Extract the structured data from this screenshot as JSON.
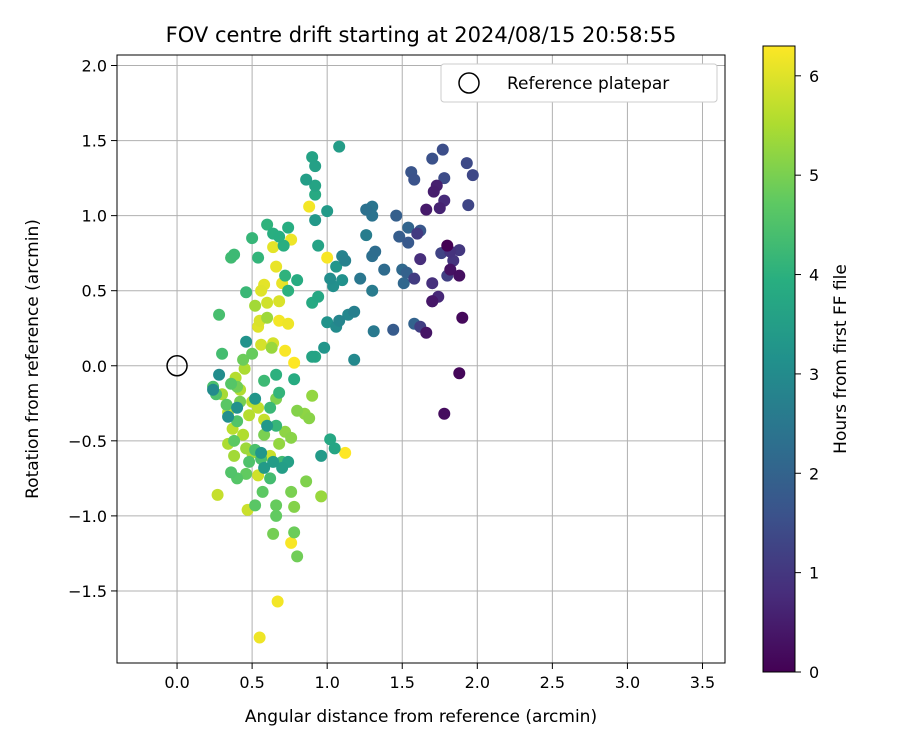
{
  "chart_data": {
    "type": "scatter",
    "title": "FOV centre drift starting at 2024/08/15 20:58:55",
    "xlabel": "Angular distance from reference (arcmin)",
    "ylabel": "Rotation from reference (arcmin)",
    "xlim": [
      -0.4,
      3.65
    ],
    "ylim": [
      -1.98,
      2.07
    ],
    "xticks": [
      "0.0",
      "0.5",
      "1.0",
      "1.5",
      "2.0",
      "2.5",
      "3.0",
      "3.5"
    ],
    "yticks": [
      "−1.5",
      "−1.0",
      "−0.5",
      "0.0",
      "0.5",
      "1.0",
      "1.5",
      "2.0"
    ],
    "grid": true,
    "legend": {
      "placement": "top-right",
      "entries": [
        "Reference platepar"
      ]
    },
    "reference_point": {
      "x": 0.0,
      "y": 0.0
    },
    "colorbar": {
      "label": "Hours from first FF file",
      "range": [
        0,
        6.3
      ],
      "ticks": [
        "0",
        "1",
        "2",
        "3",
        "4",
        "5",
        "6"
      ],
      "colormap": "viridis"
    },
    "series": [
      {
        "points": [
          [
            1.8,
            0.8,
            0.0
          ],
          [
            1.88,
            -0.05,
            0.1
          ],
          [
            1.9,
            0.32,
            0.15
          ],
          [
            1.78,
            -0.32,
            0.2
          ],
          [
            1.88,
            0.6,
            0.25
          ],
          [
            1.82,
            0.64,
            0.3
          ],
          [
            1.66,
            0.22,
            0.35
          ],
          [
            1.7,
            0.43,
            0.4
          ],
          [
            1.66,
            1.04,
            0.45
          ],
          [
            1.71,
            1.16,
            0.5
          ],
          [
            1.73,
            1.2,
            0.55
          ],
          [
            1.75,
            1.05,
            0.6
          ],
          [
            1.7,
            0.43,
            0.65
          ],
          [
            1.74,
            0.46,
            0.7
          ],
          [
            1.78,
            1.1,
            0.75
          ],
          [
            1.62,
            0.71,
            0.8
          ],
          [
            1.7,
            0.55,
            0.85
          ],
          [
            1.82,
            0.76,
            0.9
          ],
          [
            1.84,
            0.7,
            0.95
          ],
          [
            1.88,
            0.77,
            1.0
          ],
          [
            1.6,
            0.88,
            1.05
          ],
          [
            1.58,
            0.58,
            1.1
          ],
          [
            1.62,
            0.26,
            1.15
          ],
          [
            1.8,
            0.6,
            1.2
          ],
          [
            1.76,
            0.75,
            1.25
          ],
          [
            1.94,
            1.07,
            1.3
          ],
          [
            1.97,
            1.27,
            1.35
          ],
          [
            1.93,
            1.35,
            1.4
          ],
          [
            1.78,
            1.25,
            1.45
          ],
          [
            1.77,
            1.44,
            1.5
          ],
          [
            1.7,
            1.38,
            1.55
          ],
          [
            1.58,
            1.24,
            1.6
          ],
          [
            1.56,
            1.29,
            1.65
          ],
          [
            1.62,
            0.9,
            1.7
          ],
          [
            1.54,
            0.82,
            1.75
          ],
          [
            1.44,
            0.24,
            1.8
          ],
          [
            1.48,
            0.86,
            1.85
          ],
          [
            1.46,
            1.0,
            1.9
          ],
          [
            1.53,
            0.62,
            1.95
          ],
          [
            1.58,
            0.28,
            2.0
          ],
          [
            1.54,
            0.92,
            2.05
          ],
          [
            1.51,
            0.55,
            2.1
          ],
          [
            1.5,
            0.64,
            2.15
          ],
          [
            1.38,
            0.64,
            2.2
          ],
          [
            1.32,
            0.76,
            2.25
          ],
          [
            1.3,
            0.73,
            2.3
          ],
          [
            1.26,
            1.04,
            2.35
          ],
          [
            1.3,
            1.0,
            2.4
          ],
          [
            1.3,
            1.06,
            2.45
          ],
          [
            1.22,
            0.58,
            2.5
          ],
          [
            1.31,
            0.23,
            2.55
          ],
          [
            1.3,
            0.5,
            2.6
          ],
          [
            1.26,
            0.87,
            2.65
          ],
          [
            1.18,
            0.36,
            2.7
          ],
          [
            1.12,
            0.7,
            2.75
          ],
          [
            1.1,
            0.73,
            2.8
          ],
          [
            1.08,
            0.3,
            2.85
          ],
          [
            1.14,
            0.34,
            2.9
          ],
          [
            1.18,
            0.04,
            2.95
          ],
          [
            1.06,
            0.26,
            3.0
          ],
          [
            1.02,
            0.58,
            3.05
          ],
          [
            1.04,
            0.53,
            3.1
          ],
          [
            1.1,
            0.57,
            3.15
          ],
          [
            1.0,
            0.29,
            3.2
          ],
          [
            0.98,
            0.12,
            3.25
          ],
          [
            1.06,
            0.66,
            3.3
          ],
          [
            0.92,
            0.97,
            3.35
          ],
          [
            1.0,
            1.03,
            3.4
          ],
          [
            1.08,
            1.46,
            3.45
          ],
          [
            0.86,
            1.24,
            3.5
          ],
          [
            0.92,
            1.33,
            3.55
          ],
          [
            0.9,
            1.39,
            3.6
          ],
          [
            0.92,
            1.2,
            3.65
          ],
          [
            1.05,
            -0.55,
            3.7
          ],
          [
            1.02,
            -0.49,
            3.75
          ],
          [
            0.92,
            1.14,
            3.8
          ],
          [
            0.78,
            -0.09,
            3.85
          ],
          [
            0.74,
            0.92,
            3.9
          ],
          [
            0.71,
            0.8,
            3.95
          ],
          [
            0.66,
            -0.06,
            4.0
          ],
          [
            0.6,
            0.94,
            4.05
          ],
          [
            0.54,
            0.72,
            4.1
          ],
          [
            0.5,
            0.85,
            4.15
          ],
          [
            0.46,
            0.49,
            4.2
          ],
          [
            0.38,
            0.74,
            4.25
          ],
          [
            0.36,
            0.72,
            4.3
          ],
          [
            0.3,
            0.08,
            4.35
          ],
          [
            0.28,
            0.34,
            4.4
          ],
          [
            0.24,
            -0.14,
            4.45
          ],
          [
            0.26,
            -0.19,
            4.5
          ],
          [
            0.36,
            -0.71,
            4.55
          ],
          [
            0.4,
            -0.75,
            4.6
          ],
          [
            0.52,
            -0.93,
            4.65
          ],
          [
            0.57,
            -0.84,
            4.7
          ],
          [
            0.66,
            -1.0,
            4.75
          ],
          [
            0.66,
            -0.93,
            4.8
          ],
          [
            0.78,
            -1.11,
            4.85
          ],
          [
            0.8,
            -1.27,
            4.9
          ],
          [
            0.64,
            -1.12,
            4.95
          ],
          [
            0.76,
            -0.84,
            5.0
          ],
          [
            0.86,
            -0.77,
            5.05
          ],
          [
            0.78,
            -0.94,
            5.1
          ],
          [
            0.88,
            -0.35,
            5.15
          ],
          [
            0.85,
            -0.32,
            5.2
          ],
          [
            0.9,
            -0.2,
            5.25
          ],
          [
            0.96,
            -0.87,
            5.3
          ],
          [
            0.46,
            -0.55,
            5.35
          ],
          [
            0.38,
            -0.6,
            5.4
          ],
          [
            0.3,
            -0.19,
            5.45
          ],
          [
            0.34,
            -0.52,
            5.5
          ],
          [
            0.44,
            -0.46,
            5.55
          ],
          [
            0.48,
            -0.33,
            5.6
          ],
          [
            0.5,
            -0.24,
            5.65
          ],
          [
            0.54,
            -0.28,
            5.7
          ],
          [
            0.58,
            -0.36,
            5.75
          ],
          [
            0.62,
            -0.6,
            5.8
          ],
          [
            0.6,
            0.42,
            5.85
          ],
          [
            0.64,
            0.15,
            5.9
          ],
          [
            0.68,
            0.43,
            5.95
          ],
          [
            0.56,
            0.5,
            6.0
          ],
          [
            0.58,
            0.54,
            6.05
          ],
          [
            0.7,
            0.55,
            6.1
          ],
          [
            0.76,
            0.84,
            6.15
          ],
          [
            0.88,
            1.06,
            6.2
          ],
          [
            1.0,
            0.72,
            6.25
          ],
          [
            1.12,
            -0.58,
            6.3
          ],
          [
            0.78,
            0.02,
            6.3
          ],
          [
            0.72,
            0.1,
            6.25
          ],
          [
            0.68,
            0.3,
            6.2
          ],
          [
            0.74,
            0.28,
            6.15
          ],
          [
            0.66,
            0.66,
            6.1
          ],
          [
            0.64,
            0.79,
            6.05
          ],
          [
            0.54,
            0.26,
            6.0
          ],
          [
            0.55,
            0.3,
            5.95
          ],
          [
            0.56,
            0.14,
            5.9
          ],
          [
            0.54,
            -0.73,
            5.85
          ],
          [
            0.47,
            -0.96,
            5.8
          ],
          [
            0.27,
            -0.86,
            5.75
          ],
          [
            0.76,
            -1.18,
            6.25
          ],
          [
            0.67,
            -1.57,
            6.2
          ],
          [
            0.55,
            -1.81,
            6.15
          ],
          [
            0.34,
            -0.31,
            5.7
          ],
          [
            0.37,
            -0.42,
            5.65
          ],
          [
            0.39,
            -0.08,
            5.6
          ],
          [
            0.42,
            -0.16,
            5.55
          ],
          [
            0.45,
            -0.02,
            5.5
          ],
          [
            0.5,
            -0.58,
            5.45
          ],
          [
            0.52,
            0.4,
            5.4
          ],
          [
            0.6,
            0.32,
            5.35
          ],
          [
            0.63,
            0.12,
            5.3
          ],
          [
            0.68,
            -0.52,
            5.25
          ],
          [
            0.72,
            -0.44,
            5.2
          ],
          [
            0.76,
            -0.48,
            5.15
          ],
          [
            0.8,
            -0.3,
            5.1
          ],
          [
            0.66,
            -0.22,
            5.05
          ],
          [
            0.58,
            -0.46,
            5.0
          ],
          [
            0.42,
            -0.24,
            4.95
          ],
          [
            0.4,
            -0.14,
            4.9
          ],
          [
            0.44,
            0.04,
            4.85
          ],
          [
            0.5,
            0.08,
            4.8
          ],
          [
            0.46,
            -0.72,
            4.75
          ],
          [
            0.38,
            -0.5,
            4.7
          ],
          [
            0.33,
            -0.26,
            4.65
          ],
          [
            0.36,
            -0.12,
            4.6
          ],
          [
            0.4,
            -0.37,
            4.55
          ],
          [
            0.48,
            -0.64,
            4.5
          ],
          [
            0.52,
            -0.56,
            4.45
          ],
          [
            0.56,
            -0.62,
            4.4
          ],
          [
            0.62,
            -0.75,
            4.35
          ],
          [
            0.7,
            -0.64,
            4.3
          ],
          [
            0.58,
            -0.1,
            4.25
          ],
          [
            0.62,
            -0.28,
            4.2
          ],
          [
            0.66,
            -0.4,
            4.15
          ],
          [
            0.68,
            -0.18,
            4.1
          ],
          [
            0.72,
            0.6,
            4.05
          ],
          [
            0.74,
            0.5,
            4.0
          ],
          [
            0.64,
            0.88,
            3.95
          ],
          [
            0.68,
            0.86,
            3.9
          ],
          [
            0.8,
            0.57,
            3.85
          ],
          [
            0.9,
            0.42,
            3.8
          ],
          [
            0.94,
            0.46,
            3.75
          ],
          [
            0.92,
            0.06,
            3.7
          ],
          [
            0.9,
            0.06,
            3.65
          ],
          [
            0.94,
            0.8,
            3.6
          ],
          [
            0.74,
            -0.64,
            3.55
          ],
          [
            0.7,
            -0.68,
            3.5
          ],
          [
            0.64,
            -0.64,
            3.45
          ],
          [
            0.58,
            -0.68,
            3.4
          ],
          [
            0.6,
            -0.4,
            3.35
          ],
          [
            0.56,
            -0.58,
            3.3
          ],
          [
            0.52,
            -0.22,
            3.25
          ],
          [
            0.46,
            0.16,
            3.2
          ],
          [
            0.4,
            -0.28,
            3.15
          ],
          [
            0.34,
            -0.34,
            3.1
          ],
          [
            0.28,
            -0.06,
            3.05
          ],
          [
            0.24,
            -0.16,
            3.0
          ],
          [
            0.96,
            -0.6,
            3.4
          ]
        ]
      }
    ]
  }
}
